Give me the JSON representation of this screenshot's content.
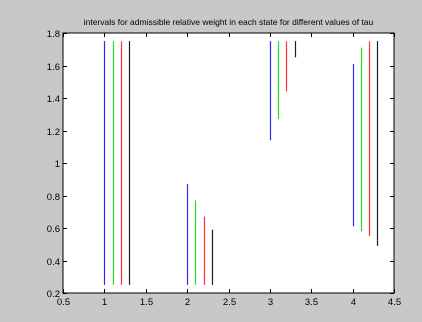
{
  "chart_data": {
    "type": "range",
    "title": "intervals for admissible relative weight in each state for different values of tau",
    "xlabel": "",
    "ylabel": "",
    "xlim": [
      0.5,
      4.5
    ],
    "ylim": [
      0.2,
      1.8
    ],
    "xticks": [
      "0.5",
      "1",
      "1.5",
      "2",
      "2.5",
      "3",
      "3.5",
      "4",
      "4.5"
    ],
    "yticks": [
      "0.2",
      "0.4",
      "0.6",
      "0.8",
      "1",
      "1.2",
      "1.4",
      "1.6",
      "1.8"
    ],
    "grid": false,
    "series": [
      {
        "color": "#2828ff",
        "intervals": [
          {
            "x": 1.0,
            "y_low": 0.25,
            "y_high": 1.75
          },
          {
            "x": 2.0,
            "y_low": 0.25,
            "y_high": 0.87
          },
          {
            "x": 3.0,
            "y_low": 1.14,
            "y_high": 1.75
          },
          {
            "x": 4.0,
            "y_low": 0.61,
            "y_high": 1.61
          }
        ]
      },
      {
        "color": "#22e022",
        "intervals": [
          {
            "x": 1.1,
            "y_low": 0.25,
            "y_high": 1.75
          },
          {
            "x": 2.1,
            "y_low": 0.25,
            "y_high": 0.77
          },
          {
            "x": 3.1,
            "y_low": 1.27,
            "y_high": 1.75
          },
          {
            "x": 4.1,
            "y_low": 0.58,
            "y_high": 1.71
          }
        ]
      },
      {
        "color": "#ff3030",
        "intervals": [
          {
            "x": 1.2,
            "y_low": 0.25,
            "y_high": 1.75
          },
          {
            "x": 2.2,
            "y_low": 0.25,
            "y_high": 0.67
          },
          {
            "x": 3.2,
            "y_low": 1.44,
            "y_high": 1.75
          },
          {
            "x": 4.2,
            "y_low": 0.55,
            "y_high": 1.75
          }
        ]
      },
      {
        "color": "#202020",
        "intervals": [
          {
            "x": 1.3,
            "y_low": 0.25,
            "y_high": 1.75
          },
          {
            "x": 2.3,
            "y_low": 0.25,
            "y_high": 0.59
          },
          {
            "x": 3.3,
            "y_low": 1.65,
            "y_high": 1.75
          },
          {
            "x": 4.3,
            "y_low": 0.49,
            "y_high": 1.75
          }
        ]
      }
    ]
  },
  "colors": {
    "figure_background": "#c8c8c8",
    "axes_background": "#ffffff",
    "axes_frame": "#000000"
  }
}
